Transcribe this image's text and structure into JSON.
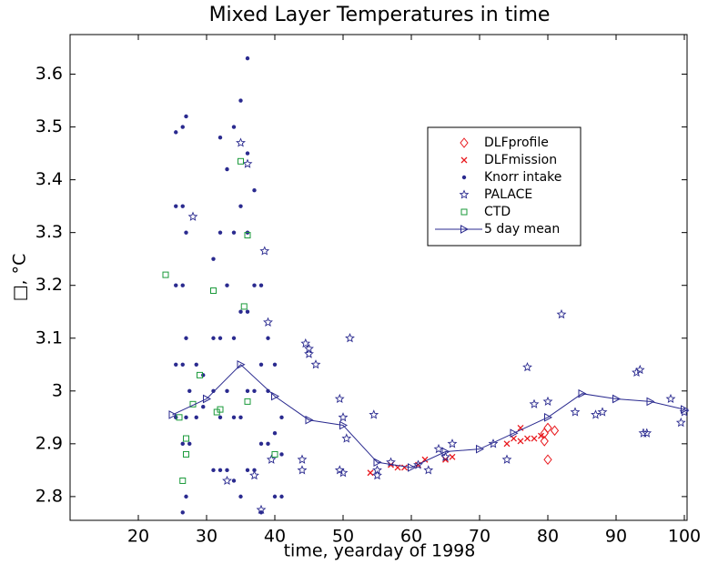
{
  "chart_data": {
    "type": "scatter",
    "title": "Mixed Layer Temperatures in time",
    "xlabel": "time, yearday of 1998",
    "ylabel": "□, °C",
    "xlim": [
      10,
      100
    ],
    "ylim": [
      2.755,
      3.675
    ],
    "xticks": [
      20,
      30,
      40,
      50,
      60,
      70,
      80,
      90,
      100
    ],
    "yticks": [
      2.8,
      2.9,
      3,
      3.1,
      3.2,
      3.3,
      3.4,
      3.5,
      3.6
    ],
    "series": [
      {
        "name": "DLFprofile",
        "color": "#e8161b",
        "marker": "diamond",
        "x": [
          79.5,
          79.5,
          80,
          80,
          81
        ],
        "y": [
          2.92,
          2.905,
          2.93,
          2.87,
          2.925
        ]
      },
      {
        "name": "DLFmission",
        "color": "#e8161b",
        "marker": "x",
        "x": [
          54,
          57,
          58,
          59,
          61,
          62,
          65,
          66,
          74,
          75,
          76,
          76,
          77,
          78,
          79
        ],
        "y": [
          2.845,
          2.86,
          2.855,
          2.855,
          2.86,
          2.87,
          2.87,
          2.875,
          2.9,
          2.91,
          2.93,
          2.905,
          2.91,
          2.91,
          2.915
        ]
      },
      {
        "name": "Knorr intake",
        "color": "#2a2a8f",
        "marker": "dot",
        "x": [
          25.5,
          25.5,
          25.5,
          25.5,
          25.5,
          26.5,
          26.5,
          26.5,
          26.5,
          26.5,
          26.5,
          27,
          27,
          27,
          27,
          27,
          27.5,
          27.5,
          28.5,
          28.5,
          29.5,
          29.5,
          31,
          31,
          31,
          31,
          32,
          32,
          32,
          32,
          32,
          33,
          33,
          33,
          33,
          34,
          34,
          34,
          34,
          34,
          35,
          35,
          35,
          35,
          35,
          36,
          36,
          36,
          36,
          36,
          36,
          37,
          37,
          37,
          37,
          38,
          38,
          38,
          38,
          39,
          39,
          39,
          40,
          40,
          40,
          41,
          41,
          41
        ],
        "y": [
          2.95,
          3.05,
          3.2,
          3.35,
          3.49,
          2.77,
          2.9,
          3.05,
          3.2,
          3.35,
          3.5,
          2.8,
          2.95,
          3.1,
          3.3,
          3.52,
          2.9,
          3.0,
          2.95,
          3.05,
          2.97,
          3.03,
          2.85,
          3.0,
          3.1,
          3.25,
          2.85,
          2.95,
          3.1,
          3.3,
          3.48,
          2.85,
          3.0,
          3.2,
          3.42,
          2.83,
          2.95,
          3.1,
          3.3,
          3.5,
          2.8,
          2.95,
          3.15,
          3.35,
          3.55,
          2.85,
          3.0,
          3.15,
          3.3,
          3.45,
          3.63,
          2.85,
          3.0,
          3.2,
          3.38,
          2.77,
          2.9,
          3.05,
          3.2,
          2.9,
          3.0,
          3.1,
          2.8,
          2.92,
          3.05,
          2.8,
          2.88,
          2.95
        ]
      },
      {
        "name": "PALACE",
        "color": "#2a2a8f",
        "marker": "star",
        "x": [
          44.5,
          45,
          45,
          46,
          44,
          44,
          49.5,
          50,
          50.5,
          51,
          49.5,
          50,
          54.5,
          55,
          55,
          57,
          61,
          62.5,
          64,
          66,
          65,
          72,
          74,
          77,
          78,
          80,
          82,
          84,
          87,
          88,
          93,
          93.5,
          94,
          94.5,
          98,
          99.5,
          100,
          28,
          35,
          36,
          38.5,
          39,
          38,
          39.5,
          37,
          33
        ],
        "y": [
          3.09,
          3.08,
          3.07,
          3.05,
          2.85,
          2.87,
          2.985,
          2.95,
          2.91,
          3.1,
          2.85,
          2.845,
          2.955,
          2.84,
          2.85,
          2.865,
          2.86,
          2.85,
          2.89,
          2.9,
          2.875,
          2.9,
          2.87,
          3.045,
          2.975,
          2.98,
          3.145,
          2.96,
          2.955,
          2.96,
          3.035,
          3.04,
          2.92,
          2.92,
          2.985,
          2.94,
          2.96,
          3.33,
          3.47,
          3.43,
          3.265,
          3.13,
          2.775,
          2.87,
          2.84,
          2.83
        ]
      },
      {
        "name": "CTD",
        "color": "#1a9a3a",
        "marker": "square",
        "x": [
          24,
          31,
          35,
          36,
          35.5,
          26,
          27,
          27,
          28,
          29,
          32,
          31.5,
          36,
          40,
          26.5
        ],
        "y": [
          3.22,
          3.19,
          3.435,
          3.295,
          3.16,
          2.95,
          2.91,
          2.88,
          2.975,
          3.03,
          2.965,
          2.96,
          2.98,
          2.88,
          2.83
        ]
      },
      {
        "name": "5 day mean",
        "color": "#2a2a8f",
        "marker": "triangle",
        "line": true,
        "x": [
          25,
          30,
          35,
          40,
          45,
          50,
          55,
          60,
          65,
          70,
          75,
          80,
          85,
          90,
          95,
          100
        ],
        "y": [
          2.955,
          2.985,
          3.05,
          2.99,
          2.945,
          2.935,
          2.865,
          2.855,
          2.885,
          2.89,
          2.92,
          2.95,
          2.995,
          2.985,
          2.98,
          2.965
        ]
      }
    ]
  }
}
